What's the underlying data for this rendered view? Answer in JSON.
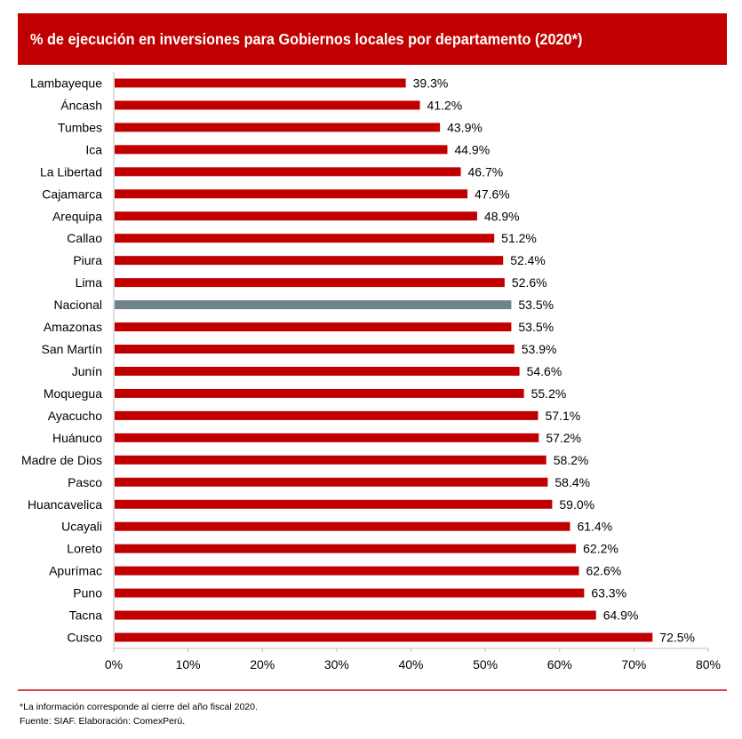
{
  "header": {
    "title": "% de ejecución en inversiones para Gobiernos locales por departamento (2020*)"
  },
  "chart_data": {
    "type": "bar",
    "orientation": "horizontal",
    "title": "% de ejecución en inversiones para Gobiernos locales por departamento (2020*)",
    "xlabel": "",
    "ylabel": "",
    "xlim": [
      0,
      80
    ],
    "x_ticks": [
      0,
      10,
      20,
      30,
      40,
      50,
      60,
      70,
      80
    ],
    "x_tick_labels": [
      "0%",
      "10%",
      "20%",
      "30%",
      "40%",
      "50%",
      "60%",
      "70%",
      "80%"
    ],
    "grid": false,
    "legend": "none",
    "categories": [
      "Lambayeque",
      "Áncash",
      "Tumbes",
      "Ica",
      "La Libertad",
      "Cajamarca",
      "Arequipa",
      "Callao",
      "Piura",
      "Lima",
      "Nacional",
      "Amazonas",
      "San Martín",
      "Junín",
      "Moquegua",
      "Ayacucho",
      "Huánuco",
      "Madre de Dios",
      "Pasco",
      "Huancavelica",
      "Ucayali",
      "Loreto",
      "Apurímac",
      "Puno",
      "Tacna",
      "Cusco"
    ],
    "values": [
      39.3,
      41.2,
      43.9,
      44.9,
      46.7,
      47.6,
      48.9,
      51.2,
      52.4,
      52.6,
      53.5,
      53.5,
      53.9,
      54.6,
      55.2,
      57.1,
      57.2,
      58.2,
      58.4,
      59.0,
      61.4,
      62.2,
      62.6,
      63.3,
      64.9,
      72.5
    ],
    "value_labels": [
      "39.3%",
      "41.2%",
      "43.9%",
      "44.9%",
      "46.7%",
      "47.6%",
      "48.9%",
      "51.2%",
      "52.4%",
      "52.6%",
      "53.5%",
      "53.5%",
      "53.9%",
      "54.6%",
      "55.2%",
      "57.1%",
      "57.2%",
      "58.2%",
      "58.4%",
      "59.0%",
      "61.4%",
      "62.2%",
      "62.6%",
      "63.3%",
      "64.9%",
      "72.5%"
    ],
    "highlight": "Nacional",
    "colors": {
      "default": "#c00000",
      "highlight": "#6f8489",
      "axis": "#bfbfbf"
    }
  },
  "footer": {
    "note": "*La información corresponde al cierre del año fiscal 2020.",
    "source": "Fuente: SIAF. Elaboración: ComexPerú."
  }
}
